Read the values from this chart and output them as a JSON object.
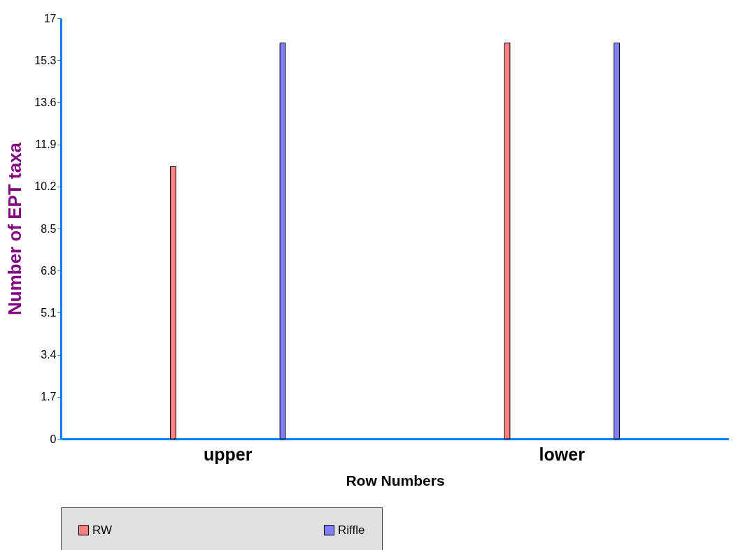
{
  "chart_data": {
    "type": "bar",
    "xlabel": "Row Numbers",
    "ylabel": "Number of EPT taxa",
    "categories": [
      "upper",
      "lower"
    ],
    "series": [
      {
        "name": "RW",
        "color": "#ff8080",
        "values": [
          11,
          16
        ]
      },
      {
        "name": "Riffle",
        "color": "#8080ff",
        "values": [
          16,
          16
        ]
      }
    ],
    "ylim": [
      0,
      17
    ],
    "yticks": [
      0,
      1.7,
      3.4,
      5.1,
      6.8,
      8.5,
      10.2,
      11.9,
      13.6,
      15.3,
      17
    ],
    "grid": false,
    "legend": "bottom"
  }
}
